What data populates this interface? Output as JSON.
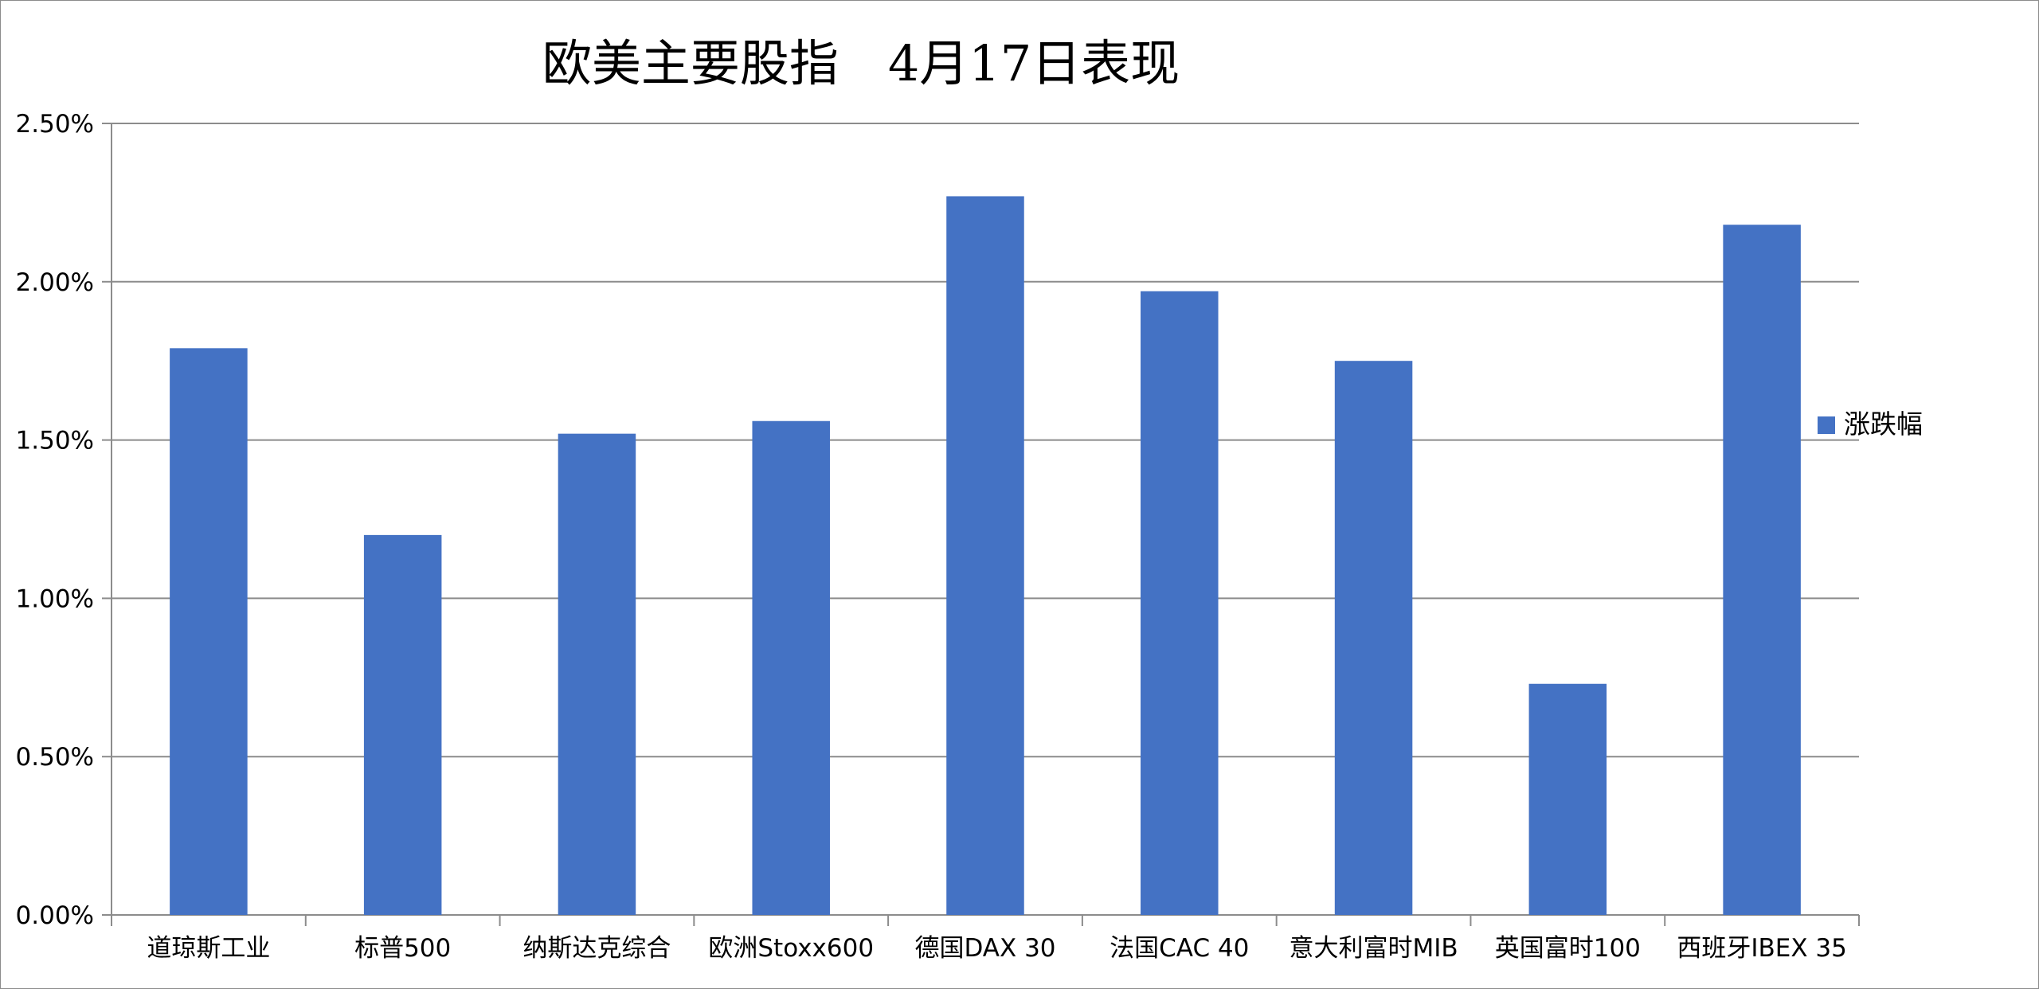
{
  "chart_data": {
    "type": "bar",
    "title": "欧美主要股指　4月17日表现",
    "categories": [
      "道琼斯工业",
      "标普500",
      "纳斯达克综合",
      "欧洲Stoxx600",
      "德国DAX 30",
      "法国CAC 40",
      "意大利富时MIB",
      "英国富时100",
      "西班牙IBEX 35"
    ],
    "series": [
      {
        "name": "涨跌幅",
        "values": [
          1.79,
          1.2,
          1.52,
          1.56,
          2.27,
          1.97,
          1.75,
          0.73,
          2.18
        ],
        "color": "#4472C4"
      }
    ],
    "ylim": [
      0,
      2.5
    ],
    "yticks": [
      "0.00%",
      "0.50%",
      "1.00%",
      "1.50%",
      "2.00%",
      "2.50%"
    ],
    "ytick_values": [
      0,
      0.5,
      1.0,
      1.5,
      2.0,
      2.5
    ],
    "grid": true,
    "legend_position": "right"
  }
}
